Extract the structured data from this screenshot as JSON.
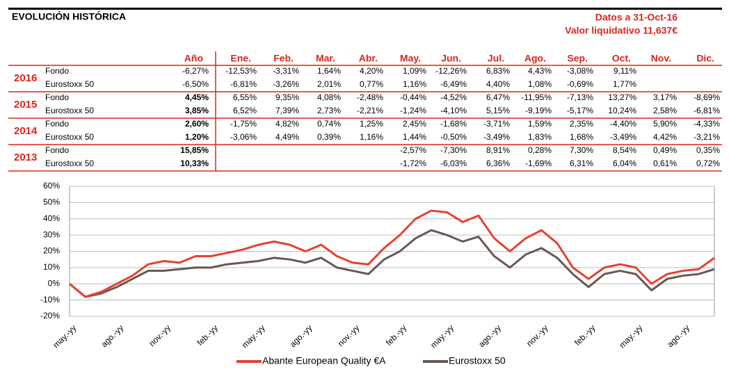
{
  "header": {
    "title": "EVOLUCIÓN HISTÓRICA",
    "date": "Datos a 31-Oct-16",
    "nav": "Valor liquidativo 11,637€"
  },
  "table": {
    "columns": [
      "Año",
      "Ene.",
      "Feb.",
      "Mar.",
      "Abr.",
      "May.",
      "Jun.",
      "Jul.",
      "Ago.",
      "Sep.",
      "Oct.",
      "Nov.",
      "Dic."
    ],
    "groups": [
      {
        "year": "2016",
        "rows": [
          {
            "label": "Fondo",
            "values": [
              "-6,27%",
              "-12,53%",
              "-3,31%",
              "1,64%",
              "4,20%",
              "1,09%",
              "-12,26%",
              "6,83%",
              "4,43%",
              "-3,08%",
              "9,11%",
              null,
              null
            ]
          },
          {
            "label": "Eurostoxx 50",
            "values": [
              "-6,50%",
              "-6,81%",
              "-3,26%",
              "2,01%",
              "0,77%",
              "1,16%",
              "-6,49%",
              "4,40%",
              "1,08%",
              "-0,69%",
              "1,77%",
              null,
              null
            ]
          }
        ]
      },
      {
        "year": "2015",
        "rows": [
          {
            "label": "Fondo",
            "values": [
              "4,45%",
              "6,55%",
              "9,35%",
              "4,08%",
              "-2,48%",
              "-0,44%",
              "-4,52%",
              "6,47%",
              "-11,95%",
              "-7,13%",
              "13,27%",
              "3,17%",
              "-8,69%"
            ]
          },
          {
            "label": "Eurostoxx 50",
            "values": [
              "3,85%",
              "6,52%",
              "7,39%",
              "2,73%",
              "-2,21%",
              "-1,24%",
              "-4,10%",
              "5,15%",
              "-9,19%",
              "-5,17%",
              "10,24%",
              "2,58%",
              "-6,81%"
            ]
          }
        ]
      },
      {
        "year": "2014",
        "rows": [
          {
            "label": "Fondo",
            "values": [
              "2,60%",
              "-1,75%",
              "4,82%",
              "0,74%",
              "1,25%",
              "2,45%",
              "-1,68%",
              "-3,71%",
              "1,59%",
              "2,35%",
              "-4,40%",
              "5,90%",
              "-4,33%"
            ]
          },
          {
            "label": "Eurostoxx 50",
            "values": [
              "1,20%",
              "-3,06%",
              "4,49%",
              "0,39%",
              "1,16%",
              "1,44%",
              "-0,50%",
              "-3,49%",
              "1,83%",
              "1,68%",
              "-3,49%",
              "4,42%",
              "-3,21%"
            ]
          }
        ]
      },
      {
        "year": "2013",
        "rows": [
          {
            "label": "Fondo",
            "values": [
              "15,85%",
              null,
              null,
              null,
              null,
              "-2,57%",
              "-7,30%",
              "8,91%",
              "0,28%",
              "7,30%",
              "8,54%",
              "0,49%",
              "0,35%"
            ]
          },
          {
            "label": "Eurostoxx 50",
            "values": [
              "10,33%",
              null,
              null,
              null,
              null,
              "-1,72%",
              "-6,03%",
              "6,36%",
              "-1,69%",
              "6,31%",
              "6,04%",
              "0,61%",
              "0,72%"
            ]
          }
        ]
      }
    ]
  },
  "chart_data": {
    "type": "line",
    "categories": [
      "may.-yy",
      null,
      null,
      "ago.-yy",
      null,
      null,
      "nov.-yy",
      null,
      null,
      "feb.-yy",
      null,
      null,
      "may.-yy",
      null,
      null,
      "ago.-yy",
      null,
      null,
      "nov.-yy",
      null,
      null,
      "feb.-yy",
      null,
      null,
      "may.-yy",
      null,
      null,
      "ago.-yy",
      null,
      null,
      "nov.-yy",
      null,
      null,
      "feb.-yy",
      null,
      null,
      "may.-yy",
      null,
      null,
      "ago.-yy",
      null,
      null
    ],
    "series": [
      {
        "name": "Abante European Quality €A",
        "color": "#e8402f",
        "values": [
          0,
          -8,
          -5,
          0,
          5,
          12,
          14,
          13,
          17,
          17,
          19,
          21,
          24,
          26,
          24,
          20,
          24,
          17,
          13,
          12,
          22,
          30,
          40,
          45,
          44,
          38,
          42,
          28,
          20,
          28,
          33,
          25,
          10,
          3,
          10,
          12,
          10,
          0,
          6,
          8,
          9,
          16
        ]
      },
      {
        "name": "Eurostoxx 50",
        "color": "#6b5650",
        "values": [
          0,
          -8,
          -6,
          -2,
          3,
          8,
          8,
          9,
          10,
          10,
          12,
          13,
          14,
          16,
          15,
          13,
          16,
          10,
          8,
          6,
          15,
          20,
          28,
          33,
          30,
          26,
          29,
          17,
          10,
          18,
          22,
          16,
          6,
          -2,
          6,
          8,
          6,
          -4,
          3,
          5,
          6,
          9
        ]
      }
    ],
    "ylim": [
      -20,
      60
    ],
    "yticks": [
      {
        "value": -20,
        "label": "-20%"
      },
      {
        "value": -10,
        "label": "-10%"
      },
      {
        "value": 0,
        "label": "0%"
      },
      {
        "value": 10,
        "label": "10%"
      },
      {
        "value": 20,
        "label": "20%"
      },
      {
        "value": 30,
        "label": "30%"
      },
      {
        "value": 40,
        "label": "40%"
      },
      {
        "value": 50,
        "label": "50%"
      },
      {
        "value": 60,
        "label": "60%"
      }
    ],
    "grid": true
  }
}
